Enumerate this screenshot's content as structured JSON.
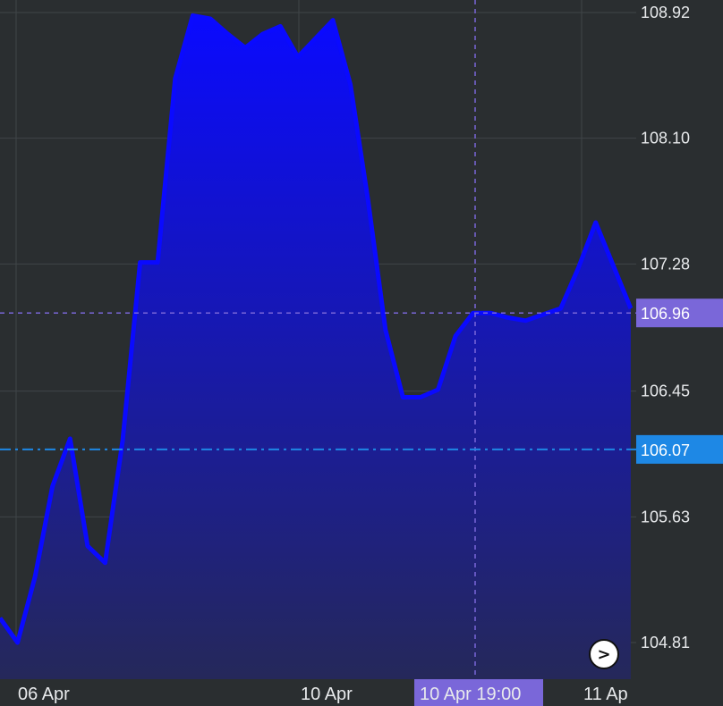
{
  "chart_data": {
    "type": "area",
    "x_labels": [
      "06 Apr",
      "10 Apr",
      "11 Ap"
    ],
    "y_ticks": [
      "108.92",
      "108.10",
      "107.28",
      "106.45",
      "105.63",
      "104.81"
    ],
    "ylim": [
      104.6,
      108.95
    ],
    "grid": true,
    "series": [
      {
        "values": [
          104.97,
          104.81,
          105.24,
          105.83,
          106.14,
          105.44,
          105.33,
          106.13,
          107.29,
          107.29,
          108.49,
          108.9,
          108.88,
          108.78,
          108.69,
          108.78,
          108.83,
          108.63,
          108.75,
          108.87,
          108.45,
          107.7,
          106.85,
          106.41,
          106.41,
          106.46,
          106.81,
          106.96,
          106.96,
          106.93,
          106.91,
          106.95,
          106.99,
          107.25,
          107.55,
          107.27,
          106.99
        ],
        "color": "#0a0aff"
      }
    ],
    "crosshair": {
      "price": "106.96",
      "time": "10 Apr 19:00"
    },
    "reference_line": {
      "price": "106.07",
      "color": "#1e88e5"
    }
  },
  "colors": {
    "background": "#2a2e30",
    "grid": "#404548",
    "line": "#0a0aff",
    "crosshair": "#7a67d9",
    "reference": "#1e88e5"
  },
  "scroll_button": {
    "icon": "chevron-right-icon",
    "glyph": ">"
  }
}
